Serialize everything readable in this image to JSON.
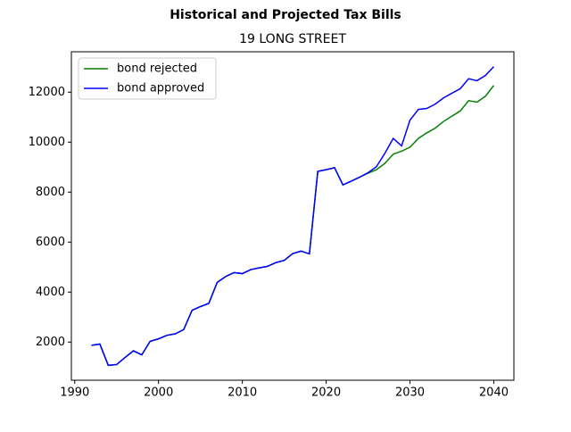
{
  "chart_data": {
    "type": "line",
    "title": "Historical and Projected Tax Bills",
    "subtitle": "19 LONG STREET",
    "x": [
      1992,
      1993,
      1994,
      1995,
      1996,
      1997,
      1998,
      1999,
      2000,
      2001,
      2002,
      2003,
      2004,
      2005,
      2006,
      2007,
      2008,
      2009,
      2010,
      2011,
      2012,
      2013,
      2014,
      2015,
      2016,
      2017,
      2018,
      2019,
      2020,
      2021,
      2022,
      2023,
      2024,
      2025,
      2026,
      2027,
      2028,
      2029,
      2030,
      2031,
      2032,
      2033,
      2034,
      2035,
      2036,
      2037,
      2038,
      2039,
      2040
    ],
    "series": [
      {
        "name": "bond rejected",
        "color": "#008000",
        "values": [
          1870,
          1920,
          1070,
          1100,
          1380,
          1650,
          1490,
          2030,
          2130,
          2270,
          2330,
          2500,
          3270,
          3420,
          3550,
          4390,
          4620,
          4780,
          4740,
          4900,
          4970,
          5030,
          5180,
          5270,
          5540,
          5640,
          5530,
          8830,
          8900,
          8980,
          8290,
          8440,
          8600,
          8760,
          8900,
          9150,
          9520,
          9640,
          9800,
          10150,
          10370,
          10560,
          10830,
          11040,
          11250,
          11660,
          11600,
          11840,
          12270
        ]
      },
      {
        "name": "bond approved",
        "color": "#0000ff",
        "values": [
          1870,
          1920,
          1070,
          1100,
          1380,
          1650,
          1490,
          2030,
          2130,
          2270,
          2330,
          2500,
          3270,
          3420,
          3550,
          4390,
          4620,
          4780,
          4740,
          4900,
          4970,
          5030,
          5180,
          5270,
          5540,
          5640,
          5530,
          8830,
          8900,
          8980,
          8290,
          8440,
          8600,
          8780,
          9020,
          9550,
          10150,
          9850,
          10880,
          11310,
          11350,
          11520,
          11770,
          11960,
          12140,
          12540,
          12460,
          12670,
          13020
        ]
      }
    ],
    "xlim": [
      1989.6,
      2042.4
    ],
    "ylim": [
      473,
      13618
    ],
    "xticks": [
      1990,
      2000,
      2010,
      2020,
      2030,
      2040
    ],
    "yticks": [
      2000,
      4000,
      6000,
      8000,
      10000,
      12000
    ],
    "legend": "upper-left"
  }
}
